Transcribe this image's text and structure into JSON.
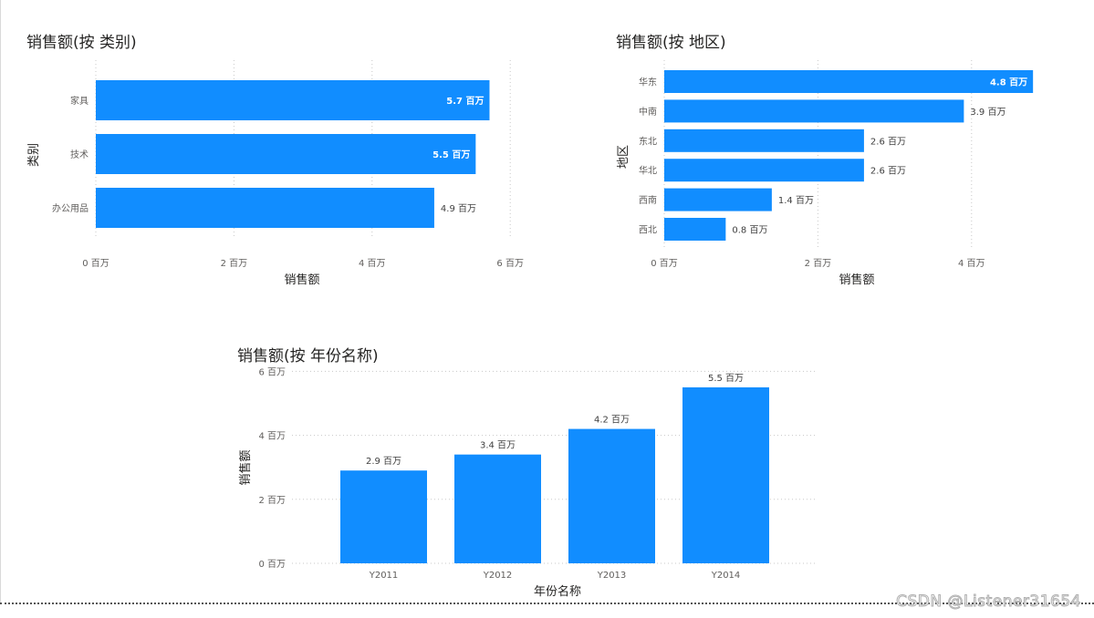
{
  "colors": {
    "bar": "#118dff",
    "background": "#ffffff"
  },
  "watermark": "CSDN @Listener31654",
  "chart_data": [
    {
      "id": "category",
      "type": "bar",
      "orientation": "horizontal",
      "title": "销售额(按 类别)",
      "xlabel": "销售额",
      "ylabel": "类别",
      "categories": [
        "家具",
        "技术",
        "办公用品"
      ],
      "values": [
        5.7,
        5.5,
        4.9
      ],
      "data_labels": [
        "5.7 百万",
        "5.5 百万",
        "4.9 百万"
      ],
      "x_ticks": [
        "0 百万",
        "2 百万",
        "4 百万",
        "6 百万"
      ],
      "x_tick_values": [
        0,
        2,
        4,
        6
      ],
      "xlim": [
        0,
        6
      ],
      "grid": true
    },
    {
      "id": "region",
      "type": "bar",
      "orientation": "horizontal",
      "title": "销售额(按 地区)",
      "xlabel": "销售额",
      "ylabel": "地区",
      "categories": [
        "华东",
        "中南",
        "东北",
        "华北",
        "西南",
        "西北"
      ],
      "values": [
        4.8,
        3.9,
        2.6,
        2.6,
        1.4,
        0.8
      ],
      "data_labels": [
        "4.8 百万",
        "3.9 百万",
        "2.6 百万",
        "2.6 百万",
        "1.4 百万",
        "0.8 百万"
      ],
      "x_ticks": [
        "0 百万",
        "2 百万",
        "4 百万"
      ],
      "x_tick_values": [
        0,
        2,
        4
      ],
      "xlim": [
        0,
        4.8
      ],
      "grid": true
    },
    {
      "id": "year",
      "type": "bar",
      "orientation": "vertical",
      "title": "销售额(按 年份名称)",
      "xlabel": "年份名称",
      "ylabel": "销售额",
      "categories": [
        "Y2011",
        "Y2012",
        "Y2013",
        "Y2014"
      ],
      "values": [
        2.9,
        3.4,
        4.2,
        5.5
      ],
      "data_labels": [
        "2.9 百万",
        "3.4 百万",
        "4.2 百万",
        "5.5 百万"
      ],
      "y_ticks": [
        "0 百万",
        "2 百万",
        "4 百万",
        "6 百万"
      ],
      "y_tick_values": [
        0,
        2,
        4,
        6
      ],
      "ylim": [
        0,
        6
      ],
      "grid": true
    }
  ]
}
